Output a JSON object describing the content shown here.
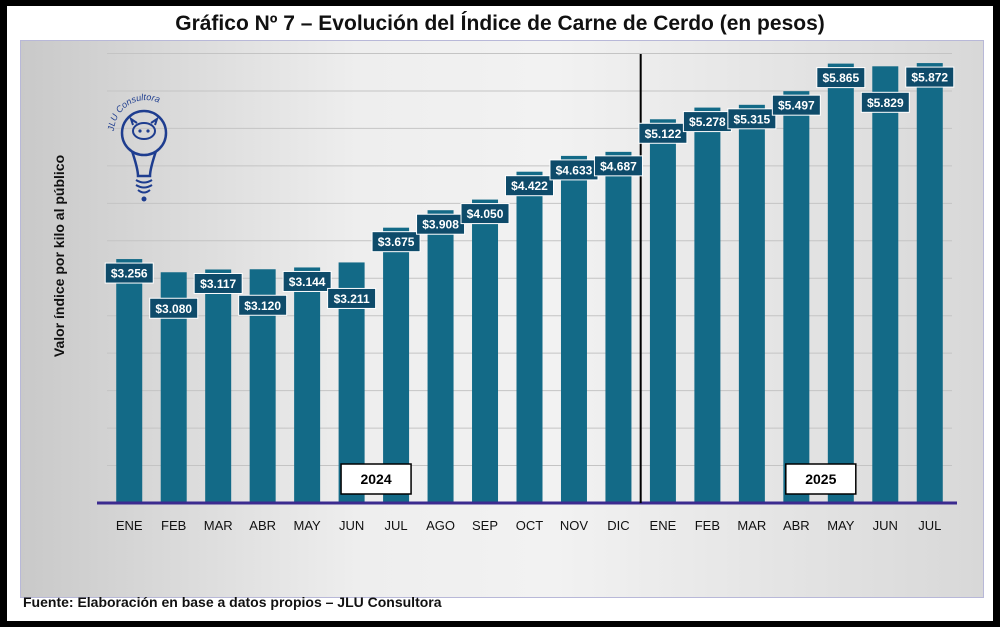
{
  "title": "Gráfico Nº 7 – Evolución del Índice de Carne de Cerdo (en pesos)",
  "footer": "Fuente: Elaboración en base a datos propios – JLU Consultora",
  "logo_text": "JLU Consultora",
  "colors": {
    "bar": "#136a87",
    "label_bg": "#0e4b6a",
    "label_text": "#ffffff",
    "baseline": "#3b2b8f",
    "divider": "#000000",
    "logo": "#1e3d8f"
  },
  "chart_data": {
    "type": "bar",
    "title": "Gráfico Nº 7 – Evolución del Índice de Carne de Cerdo (en pesos)",
    "xlabel": "",
    "ylabel": "Valor índice por kilo al público",
    "ylim": [
      0,
      6100
    ],
    "grid": true,
    "categories": [
      "ENE",
      "FEB",
      "MAR",
      "ABR",
      "MAY",
      "JUN",
      "JUL",
      "AGO",
      "SEP",
      "OCT",
      "NOV",
      "DIC",
      "ENE",
      "FEB",
      "MAR",
      "ABR",
      "MAY",
      "JUN",
      "JUL"
    ],
    "values": [
      3256,
      3080,
      3117,
      3120,
      3144,
      3211,
      3675,
      3908,
      4050,
      4422,
      4633,
      4687,
      5122,
      5278,
      5315,
      5497,
      5865,
      5829,
      5872
    ],
    "data_labels": [
      "$3.256",
      "$3.080",
      "$3.117",
      "$3.120",
      "$3.144",
      "$3.211",
      "$3.675",
      "$3.908",
      "$4.050",
      "$4.422",
      "$4.633",
      "$4.687",
      "$5.122",
      "$5.278",
      "$5.315",
      "$5.497",
      "$5.865",
      "$5.829",
      "$5.872"
    ],
    "year_labels": [
      {
        "text": "2024",
        "category_index": 5
      },
      {
        "text": "2025",
        "category_index": 15
      }
    ],
    "year_divider_after_index": 11
  }
}
